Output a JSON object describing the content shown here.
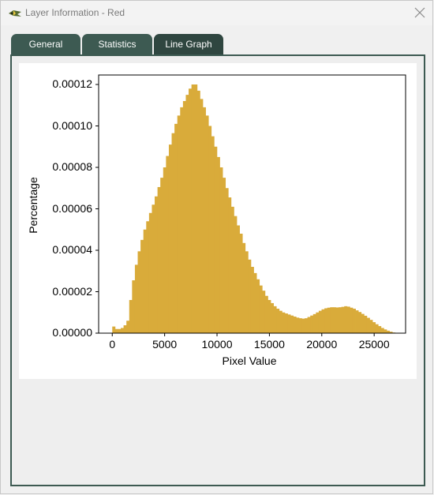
{
  "window": {
    "title": "Layer Information - Red"
  },
  "tabs": [
    {
      "label": "General"
    },
    {
      "label": "Statistics"
    },
    {
      "label": "Line Graph"
    }
  ],
  "colors": {
    "bar": "#d9ab3a",
    "tab": "#3d5a52"
  },
  "chart_data": {
    "type": "bar",
    "xlabel": "Pixel Value",
    "ylabel": "Percentage",
    "xlim": [
      -1300,
      28000
    ],
    "ylim": [
      0,
      0.00012
    ],
    "xticks": [
      0,
      5000,
      10000,
      15000,
      20000,
      25000
    ],
    "xtick_labels": [
      "0",
      "5000",
      "10000",
      "15000",
      "20000",
      "25000"
    ],
    "yticks": [
      0,
      2e-05,
      4e-05,
      6e-05,
      8e-05,
      0.0001,
      0.00012
    ],
    "ytick_labels": [
      "0.00000",
      "0.00002",
      "0.00004",
      "0.00006",
      "0.00008",
      "0.00010",
      "0.00012"
    ],
    "bin_width": 270,
    "bin_start": 0,
    "values": [
      3.2e-06,
      2e-06,
      2e-06,
      2.5e-06,
      3.8e-06,
      6e-06,
      1.6e-05,
      2.55e-05,
      3.3e-05,
      3.95e-05,
      4.5e-05,
      5e-05,
      5.4e-05,
      5.8e-05,
      6.2e-05,
      6.6e-05,
      7.05e-05,
      7.5e-05,
      8e-05,
      8.55e-05,
      9.1e-05,
      9.65e-05,
      0.000101,
      0.000105,
      0.000109,
      0.000112,
      0.000115,
      0.000118,
      0.00012,
      0.00012,
      0.000117,
      0.000113,
      0.000109,
      0.000105,
      0.0001,
      9.5e-05,
      9e-05,
      8.5e-05,
      8e-05,
      7.5e-05,
      7e-05,
      6.55e-05,
      6.1e-05,
      5.65e-05,
      5.2e-05,
      4.8e-05,
      4.35e-05,
      3.95e-05,
      3.55e-05,
      3.2e-05,
      2.9e-05,
      2.6e-05,
      2.3e-05,
      2.05e-05,
      1.8e-05,
      1.6e-05,
      1.45e-05,
      1.3e-05,
      1.18e-05,
      1.08e-05,
      1e-05,
      9.5e-06,
      9e-06,
      8.5e-06,
      8e-06,
      7.5e-06,
      7.2e-06,
      7e-06,
      7.2e-06,
      7.8e-06,
      8.5e-06,
      9.2e-06,
      1e-05,
      1.08e-05,
      1.15e-05,
      1.2e-05,
      1.23e-05,
      1.25e-05,
      1.25e-05,
      1.24e-05,
      1.25e-05,
      1.27e-05,
      1.3e-05,
      1.28e-05,
      1.23e-05,
      1.18e-05,
      1.1e-05,
      1.02e-05,
      9.3e-06,
      8.4e-06,
      7.4e-06,
      6.4e-06,
      5.3e-06,
      4.3e-06,
      3.4e-06,
      2.5e-06,
      1.8e-06,
      1.2e-06,
      7e-07,
      3e-07
    ],
    "grid": false,
    "legend": false
  }
}
